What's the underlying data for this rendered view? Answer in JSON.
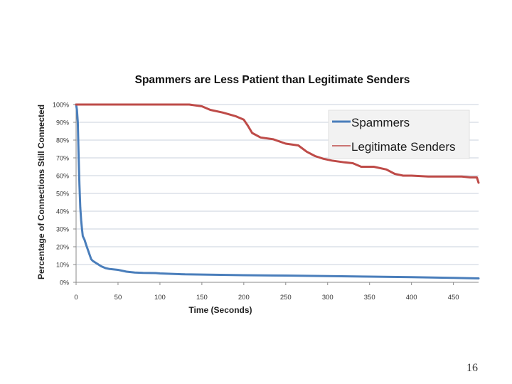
{
  "slide": {
    "page_number": "16"
  },
  "chart_data": {
    "type": "line",
    "title": "Spammers are Less Patient than Legitimate Senders",
    "xlabel": "Time (Seconds)",
    "ylabel": "Percentage of Connections Still Connected",
    "xlim": [
      0,
      480
    ],
    "ylim": [
      0,
      100
    ],
    "x_ticks": [
      0,
      50,
      100,
      150,
      200,
      250,
      300,
      350,
      400,
      450
    ],
    "y_ticks": [
      0,
      10,
      20,
      30,
      40,
      50,
      60,
      70,
      80,
      90,
      100
    ],
    "y_tick_labels": [
      "0%",
      "10%",
      "20%",
      "30%",
      "40%",
      "50%",
      "60%",
      "70%",
      "80%",
      "90%",
      "100%"
    ],
    "grid": true,
    "legend_position": "top-right",
    "series": [
      {
        "name": "Spammers",
        "color": "#4a7ebb",
        "points": [
          [
            0,
            100
          ],
          [
            1,
            97
          ],
          [
            2,
            90
          ],
          [
            3,
            72
          ],
          [
            4,
            55
          ],
          [
            5,
            42
          ],
          [
            6,
            35
          ],
          [
            7,
            30
          ],
          [
            8,
            26
          ],
          [
            10,
            24
          ],
          [
            12,
            21
          ],
          [
            15,
            17
          ],
          [
            18,
            13
          ],
          [
            20,
            12
          ],
          [
            25,
            10.5
          ],
          [
            30,
            9
          ],
          [
            35,
            8
          ],
          [
            40,
            7.5
          ],
          [
            50,
            7
          ],
          [
            60,
            6
          ],
          [
            70,
            5.5
          ],
          [
            80,
            5.3
          ],
          [
            95,
            5.2
          ],
          [
            100,
            5
          ],
          [
            130,
            4.5
          ],
          [
            200,
            4
          ],
          [
            250,
            3.8
          ],
          [
            300,
            3.5
          ],
          [
            350,
            3.2
          ],
          [
            400,
            2.9
          ],
          [
            450,
            2.5
          ],
          [
            480,
            2.2
          ]
        ]
      },
      {
        "name": "Legitimate Senders",
        "color": "#be4b48",
        "points": [
          [
            0,
            100
          ],
          [
            135,
            100
          ],
          [
            150,
            99
          ],
          [
            160,
            97
          ],
          [
            175,
            95.5
          ],
          [
            190,
            93.5
          ],
          [
            200,
            91.5
          ],
          [
            205,
            88
          ],
          [
            210,
            84
          ],
          [
            220,
            81.5
          ],
          [
            235,
            80.5
          ],
          [
            250,
            78
          ],
          [
            265,
            77
          ],
          [
            275,
            73.5
          ],
          [
            285,
            71
          ],
          [
            295,
            69.5
          ],
          [
            305,
            68.5
          ],
          [
            320,
            67.5
          ],
          [
            330,
            67
          ],
          [
            340,
            65
          ],
          [
            355,
            65
          ],
          [
            370,
            63.5
          ],
          [
            380,
            61
          ],
          [
            390,
            60
          ],
          [
            400,
            60
          ],
          [
            420,
            59.5
          ],
          [
            460,
            59.5
          ],
          [
            470,
            59
          ],
          [
            478,
            59
          ],
          [
            480,
            56
          ]
        ]
      }
    ]
  }
}
